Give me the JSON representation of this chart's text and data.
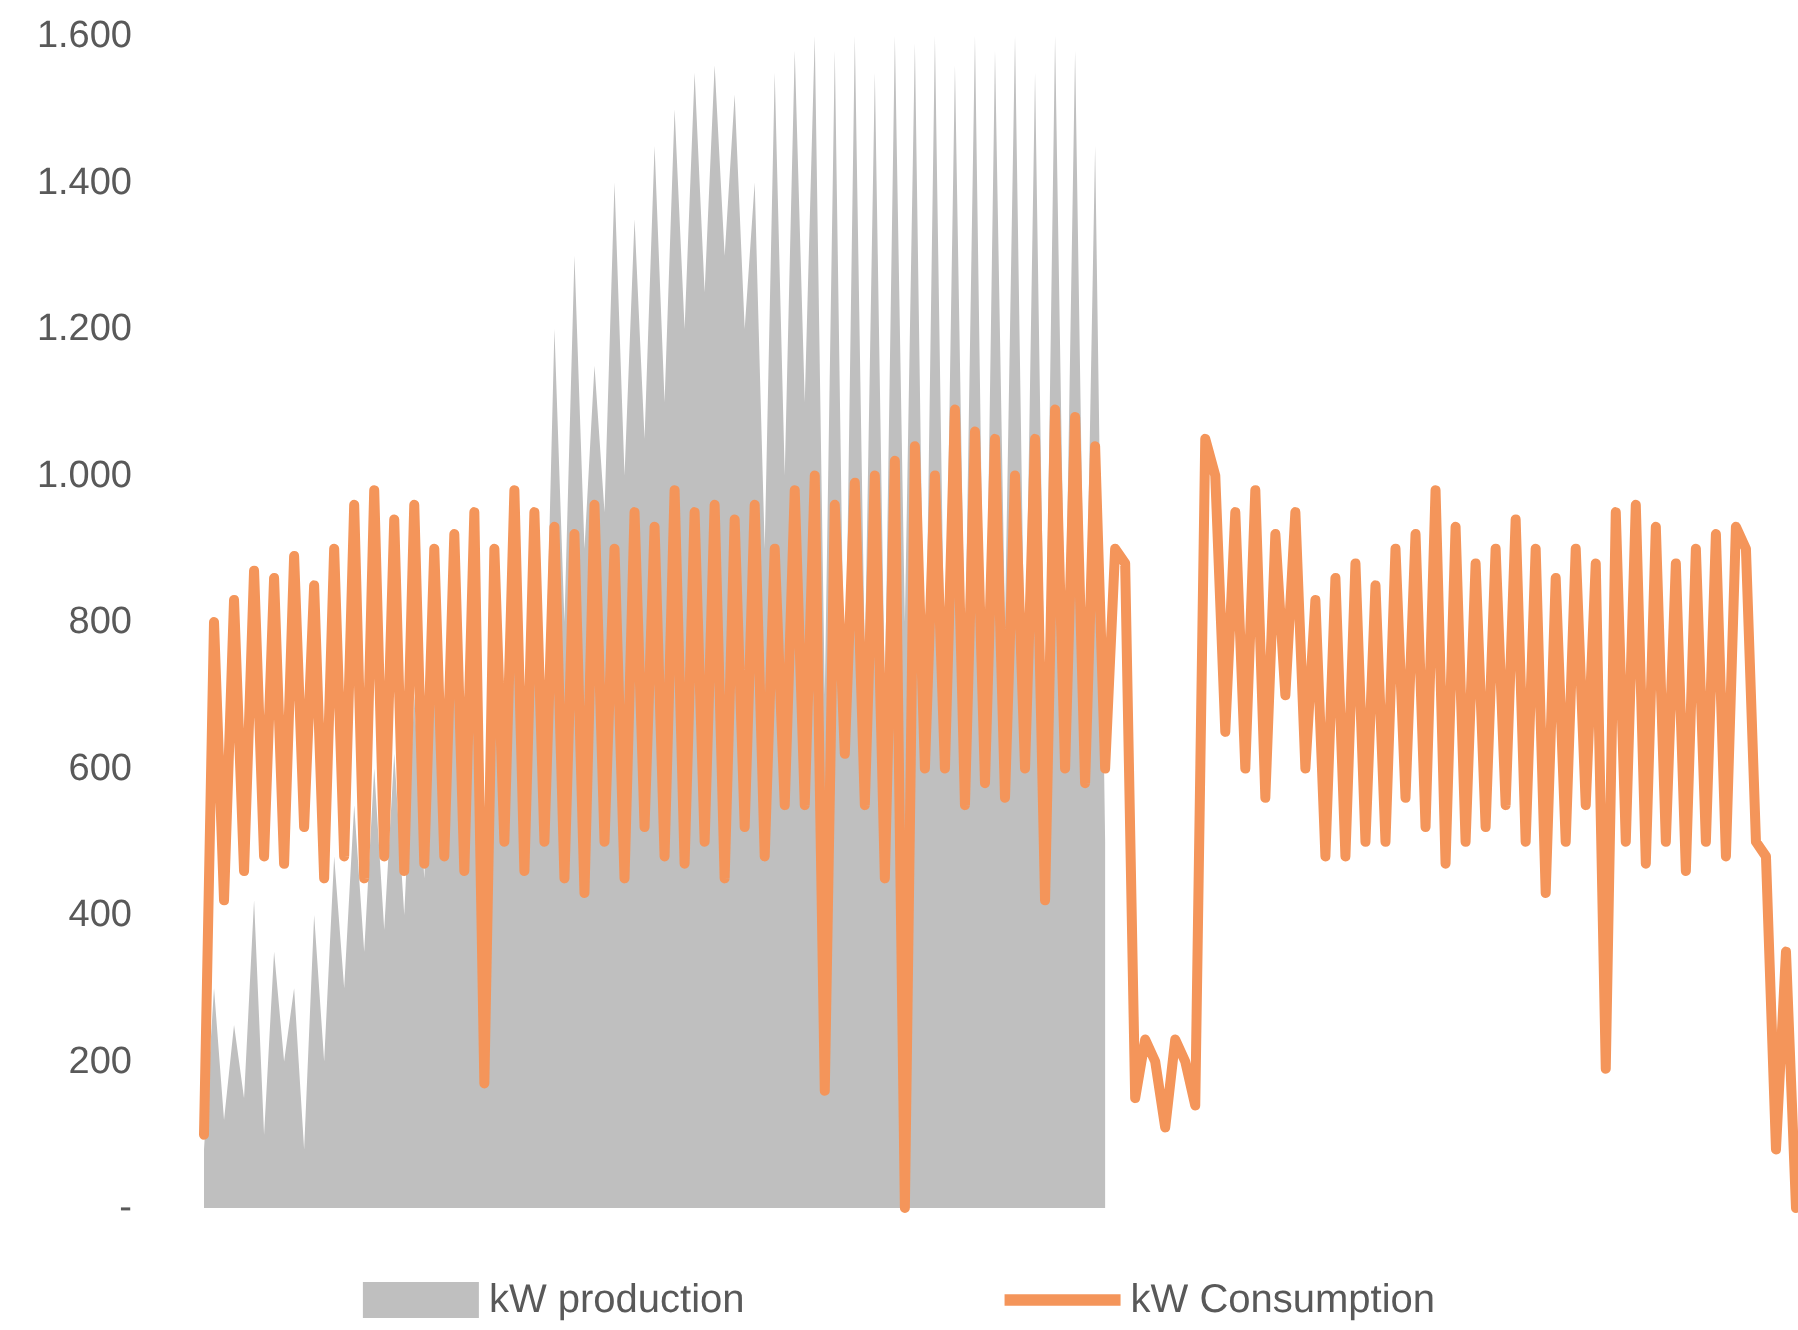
{
  "chart_data": {
    "type": "area",
    "categories": [
      null,
      null,
      null,
      null,
      null,
      null,
      null,
      null,
      null,
      null,
      null,
      null,
      null,
      null,
      null,
      null,
      null,
      null,
      null,
      null,
      null,
      null,
      null,
      null,
      null,
      null,
      null,
      null,
      null,
      null,
      null,
      null,
      null,
      null,
      null,
      null,
      null,
      null,
      null,
      null,
      null,
      null,
      null,
      null,
      null,
      null,
      null,
      null,
      null,
      null,
      null,
      null,
      null,
      null,
      null,
      null,
      null,
      null,
      null,
      null,
      null,
      null,
      null,
      null,
      null,
      null,
      null,
      null,
      null,
      null,
      null,
      null,
      null,
      null,
      null,
      null,
      null,
      null,
      null,
      null,
      null,
      null,
      null,
      null,
      null,
      null,
      null,
      null,
      null,
      null,
      null,
      null,
      null,
      null,
      null,
      null,
      null,
      null,
      null,
      null,
      null,
      null,
      null,
      null,
      null,
      null,
      null,
      null,
      null,
      null,
      null,
      null,
      null,
      null,
      null,
      null,
      null,
      null,
      null,
      null,
      null,
      null,
      null,
      null,
      null,
      null,
      null,
      null,
      null,
      null,
      null,
      null,
      null,
      null,
      null,
      null,
      null,
      null,
      null,
      null,
      null,
      null,
      null,
      null,
      null,
      null,
      null,
      null,
      null,
      null,
      null,
      null,
      null,
      null,
      null,
      null,
      null,
      null,
      null,
      null
    ],
    "series": [
      {
        "name": "kW production",
        "color": "#bfbfbf",
        "values": [
          80,
          300,
          120,
          250,
          150,
          420,
          100,
          350,
          200,
          300,
          80,
          400,
          200,
          480,
          300,
          550,
          350,
          600,
          380,
          620,
          400,
          700,
          450,
          750,
          500,
          760,
          480,
          800,
          520,
          780,
          550,
          850,
          600,
          880,
          650,
          1200,
          800,
          1300,
          900,
          1150,
          950,
          1400,
          1000,
          1350,
          1050,
          1450,
          1100,
          1500,
          1200,
          1550,
          1250,
          1560,
          1300,
          1520,
          1200,
          1400,
          900,
          1550,
          1000,
          1580,
          1100,
          1600,
          700,
          1580,
          650,
          1600,
          750,
          1550,
          700,
          1600,
          800,
          1590,
          650,
          1600,
          700,
          1560,
          750,
          1600,
          650,
          1580,
          800,
          1600,
          700,
          1550,
          650,
          1600,
          750,
          1580,
          700,
          1450,
          500,
          null,
          null,
          null,
          null,
          null,
          null,
          null,
          null,
          null,
          null,
          null,
          null,
          null,
          null,
          null,
          null,
          null,
          null,
          null,
          null,
          null,
          null,
          null,
          null,
          null,
          null,
          null,
          null,
          null,
          null,
          null,
          null,
          null,
          null,
          null,
          null,
          null,
          null,
          null,
          null,
          null,
          null,
          null,
          null,
          null,
          null,
          null,
          null,
          null,
          null,
          null,
          null,
          null,
          null,
          null,
          null,
          null,
          null,
          null,
          null,
          null,
          null,
          null,
          null,
          null,
          null,
          null,
          null,
          null
        ]
      },
      {
        "name": "kW Consumption",
        "type": "line",
        "color": "#f4955a",
        "values": [
          100,
          800,
          420,
          830,
          460,
          870,
          480,
          860,
          470,
          890,
          520,
          850,
          450,
          900,
          480,
          960,
          450,
          980,
          480,
          940,
          460,
          960,
          470,
          900,
          480,
          920,
          460,
          950,
          170,
          900,
          500,
          980,
          460,
          950,
          500,
          930,
          450,
          920,
          430,
          960,
          500,
          900,
          450,
          950,
          520,
          930,
          480,
          980,
          470,
          950,
          500,
          960,
          450,
          940,
          520,
          960,
          480,
          900,
          550,
          980,
          550,
          1000,
          160,
          960,
          620,
          990,
          550,
          1000,
          450,
          1020,
          0,
          1040,
          600,
          1000,
          600,
          1090,
          550,
          1060,
          580,
          1050,
          560,
          1000,
          600,
          1050,
          420,
          1090,
          600,
          1080,
          580,
          1040,
          600,
          900,
          880,
          150,
          230,
          200,
          110,
          230,
          200,
          140,
          1050,
          1000,
          650,
          950,
          600,
          980,
          560,
          920,
          700,
          950,
          600,
          830,
          480,
          860,
          480,
          880,
          500,
          850,
          500,
          900,
          560,
          920,
          520,
          980,
          470,
          930,
          500,
          880,
          520,
          900,
          550,
          940,
          500,
          900,
          430,
          860,
          500,
          900,
          550,
          880,
          190,
          950,
          500,
          960,
          470,
          930,
          500,
          880,
          460,
          900,
          500,
          920,
          480,
          930,
          900,
          500,
          480,
          80,
          350,
          0
        ]
      }
    ],
    "ylim": [
      0,
      1600
    ],
    "yticks": [
      {
        "value": 0,
        "label": "-"
      },
      200,
      400,
      600,
      800,
      {
        "value": 1000,
        "label": "1.000"
      },
      {
        "value": 1200,
        "label": "1.200"
      },
      {
        "value": 1400,
        "label": "1.400"
      },
      {
        "value": 1600,
        "label": "1.600"
      }
    ],
    "grid": false,
    "legend": "bottom",
    "tick_labels": "y"
  }
}
